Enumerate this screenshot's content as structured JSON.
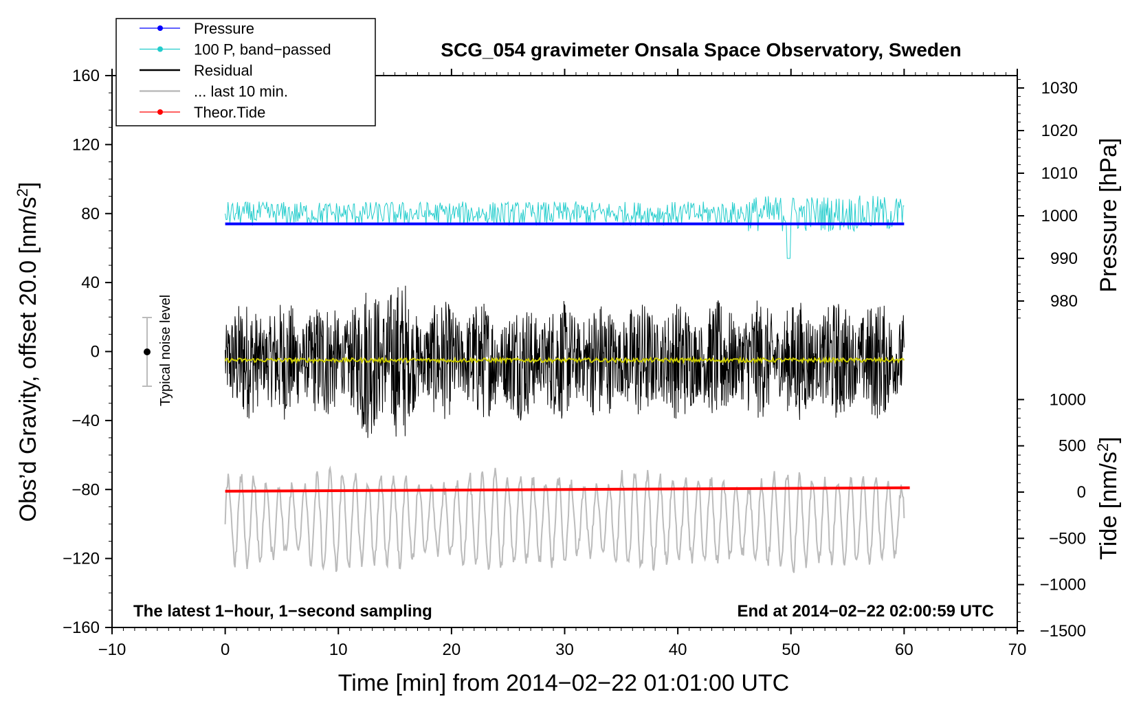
{
  "chart_data": {
    "type": "line",
    "title": "SCG_054 gravimeter Onsala Space Observatory, Sweden",
    "xlabel": "Time [min] from 2014−02−22 01:01:00 UTC",
    "xlim": [
      -10,
      70
    ],
    "xticks": [
      "−10",
      "0",
      "10",
      "20",
      "30",
      "40",
      "50",
      "60",
      "70"
    ],
    "left_axis": {
      "label": "Obs’d Gravity, offset 20.0 [nm/s",
      "label_sup": "2",
      "label_end": "]",
      "ylim": [
        -160,
        160
      ],
      "ticks": [
        "160",
        "120",
        "80",
        "40",
        "0",
        "−40",
        "−80",
        "−120",
        "−160"
      ]
    },
    "right_pressure_axis": {
      "label": "Pressure [hPa]",
      "ticks": [
        "1030",
        "1020",
        "1010",
        "1000",
        "990",
        "980"
      ],
      "values": [
        1030,
        1020,
        1010,
        1000,
        990,
        980
      ]
    },
    "right_tide_axis": {
      "label": "Tide [nm/s",
      "label_sup": "2",
      "label_end": "]",
      "ticks": [
        "1000",
        "500",
        "0",
        "−500",
        "−1000",
        "−1500"
      ],
      "values": [
        1000,
        500,
        0,
        -500,
        -1000,
        -1500
      ]
    },
    "legend": [
      {
        "label": "Pressure",
        "color": "#0000ff",
        "style": "line-dot"
      },
      {
        "label": "100 P, band−passed",
        "color": "#22cccc",
        "style": "line-dot"
      },
      {
        "label": "Residual",
        "color": "#000000",
        "style": "line"
      },
      {
        "label": "... last 10 min.",
        "color": "#bbbbbb",
        "style": "line"
      },
      {
        "label": "Theor.Tide",
        "color": "#ff0000",
        "style": "line-dot"
      }
    ],
    "series": [
      {
        "name": "Pressure",
        "color": "#0000ff",
        "x_range": [
          0,
          60
        ],
        "value_hPa": 1000,
        "plot_level_nm_s2": 74
      },
      {
        "name": "100 P, band-passed",
        "color": "#22cccc",
        "x_range": [
          0,
          60
        ],
        "center_nm_s2": 80,
        "amplitude_nm_s2": 7
      },
      {
        "name": "Residual",
        "color": "#000000",
        "x_range": [
          0,
          60
        ],
        "center_nm_s2": -5,
        "amplitude_nm_s2": 35
      },
      {
        "name": "Residual smoothed",
        "color": "#cccc00",
        "x_range": [
          0,
          60
        ],
        "center_nm_s2": -5
      },
      {
        "name": "... last 10 min.",
        "color": "#bbbbbb",
        "x_range": [
          0,
          60
        ],
        "center_nm_s2": -98,
        "amplitude_nm_s2": 22
      },
      {
        "name": "Theor.Tide",
        "color": "#ff0000",
        "x": [
          0,
          60.5
        ],
        "y_plot_nm_s2": [
          -81,
          -79
        ],
        "tide_nm_s2": [
          -10,
          10
        ]
      }
    ],
    "noise_marker": {
      "label": "Typical noise level",
      "x": -7,
      "y": 0,
      "y_range": [
        -20,
        20
      ]
    },
    "annotations": {
      "bottom_left": "The latest 1−hour, 1−second sampling",
      "bottom_right": "End at 2014−02−22 02:00:59 UTC"
    }
  }
}
